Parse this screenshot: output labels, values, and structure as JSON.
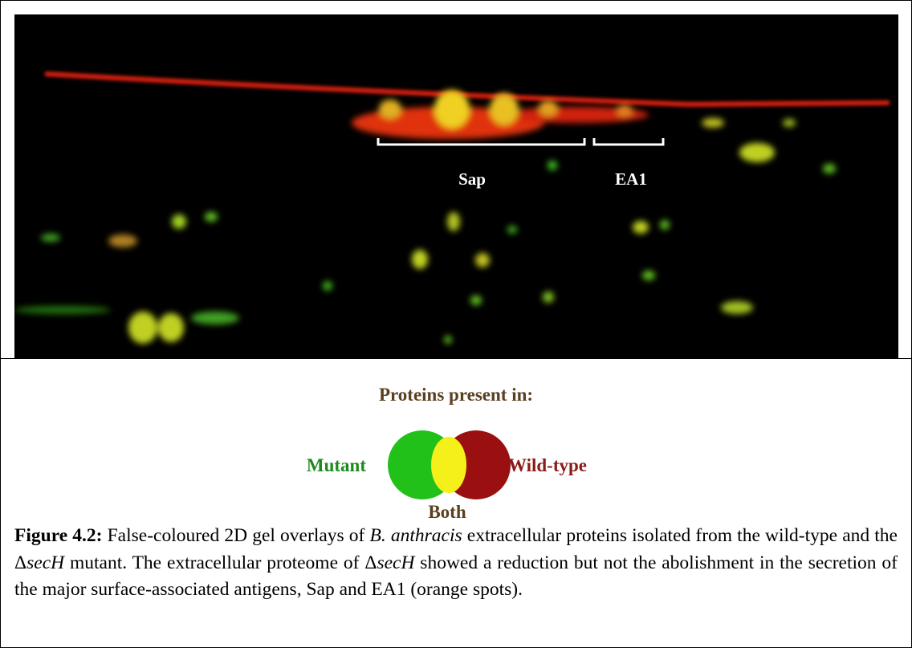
{
  "image_labels": [
    "Sap",
    "EA1"
  ],
  "legend": {
    "title": "Proteins present in:",
    "mutant": "Mutant",
    "wild_type": "Wild-type",
    "both": "Both"
  },
  "caption": {
    "label": "Figure 4.2:",
    "parts": [
      " False-coloured 2D gel overlays of ",
      "B. anthracis",
      " extracellular proteins isolated from the wild-type and the Δ",
      "secH",
      " mutant. The extracellular proteome of Δ",
      "secH",
      " showed a reduction but not the abolishment in the secretion of the major surface-associated antigens, Sap and EA1 (orange spots)."
    ]
  }
}
